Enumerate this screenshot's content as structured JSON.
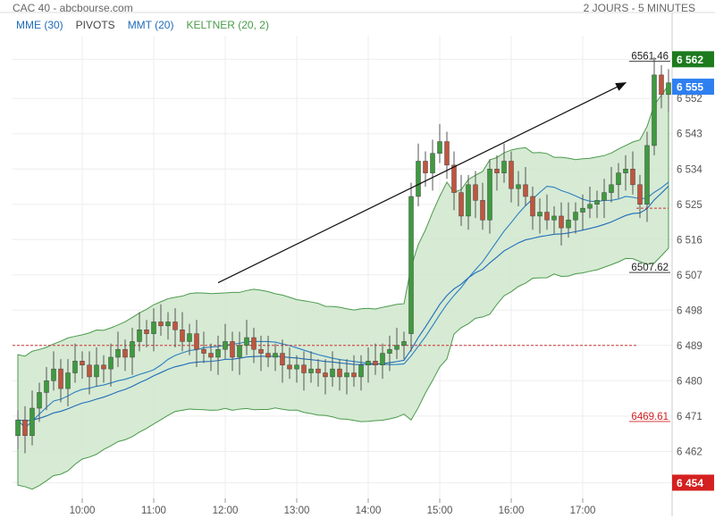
{
  "header": {
    "title": "CAC 40 - abcbourse.com",
    "period": "2 JOURS - 5 MINUTES"
  },
  "legend": [
    {
      "label": "MME (30)",
      "color": "#1f6bb8"
    },
    {
      "label": "PIVOTS",
      "color": "#444444"
    },
    {
      "label": "MMT (20)",
      "color": "#1f6bb8"
    },
    {
      "label": "KELTNER (20, 2)",
      "color": "#4a9a4a"
    }
  ],
  "colors": {
    "up": "#3f9a3f",
    "down": "#c0553e",
    "keltner_fill": "#cfe6cc",
    "keltner_line": "#4a9a4a",
    "mme": "#1f6bb8",
    "mmt": "#2a7fc0",
    "pivot": "#cc3333",
    "grid": "#eeeeee",
    "badge_green": "#1d7a1d",
    "badge_blue": "#2e7ff0",
    "badge_red": "#d42020"
  },
  "chart_data": {
    "type": "candlestick",
    "x_ticks": [
      "10:00",
      "11:00",
      "12:00",
      "13:00",
      "14:00",
      "15:00",
      "16:00",
      "17:00"
    ],
    "y_ticks": [
      6454,
      6462,
      6471,
      6480,
      6489,
      6498,
      6507,
      6516,
      6525,
      6534,
      6543,
      6552,
      6562
    ],
    "y_tick_labels": [
      "6 454",
      "6 462",
      "6 471",
      "6 480",
      "6 489",
      "6 498",
      "6 507",
      "6 516",
      "6 525",
      "6 534",
      "6 543",
      "6 552",
      "6 562"
    ],
    "ylim": [
      6450,
      6568
    ],
    "x_index_ticks": [
      9,
      19,
      29,
      39,
      49,
      59,
      69,
      79
    ],
    "n": 92,
    "pivots": [
      6489,
      6524
    ],
    "annotations": [
      {
        "value": 6561.46,
        "label": "6561.46",
        "color": "#222222"
      },
      {
        "value": 6507.62,
        "label": "6507.62",
        "color": "#222222"
      },
      {
        "value": 6469.61,
        "label": "6469.61",
        "color": "#d42020"
      }
    ],
    "badges": [
      {
        "value": 6562,
        "label": "6 562",
        "color": "#1d7a1d"
      },
      {
        "value": 6555,
        "label": "6 555",
        "color": "#2e7ff0"
      },
      {
        "value": 6454,
        "label": "6 454",
        "color": "#d42020"
      }
    ],
    "trendline": [
      [
        28,
        6505
      ],
      [
        85,
        6556
      ]
    ],
    "closes": [
      6470,
      6466,
      6473,
      6477,
      6480,
      6483,
      6478,
      6482,
      6485,
      6484,
      6481,
      6484,
      6483,
      6486,
      6488,
      6486,
      6490,
      6493,
      6492,
      6495,
      6494,
      6495,
      6493,
      6490,
      6492,
      6488,
      6487,
      6486,
      6488,
      6490,
      6486,
      6489,
      6491,
      6488,
      6487,
      6486,
      6487,
      6484,
      6483,
      6484,
      6482,
      6483,
      6482,
      6481,
      6483,
      6481,
      6482,
      6481,
      6484,
      6485,
      6484,
      6487,
      6488,
      6489,
      6490,
      6527,
      6536,
      6533,
      6538,
      6541,
      6535,
      6528,
      6522,
      6530,
      6526,
      6521,
      6534,
      6533,
      6536,
      6529,
      6530,
      6527,
      6522,
      6523,
      6521,
      6522,
      6519,
      6521,
      6523,
      6524,
      6525,
      6526,
      6528,
      6530,
      6533,
      6534,
      6530,
      6525,
      6540,
      6558,
      6553,
      6556
    ],
    "opens": [
      6466,
      6470,
      6466,
      6473,
      6477,
      6480,
      6483,
      6478,
      6482,
      6485,
      6484,
      6481,
      6484,
      6483,
      6486,
      6488,
      6486,
      6490,
      6493,
      6492,
      6495,
      6494,
      6495,
      6493,
      6490,
      6492,
      6488,
      6487,
      6486,
      6488,
      6490,
      6486,
      6489,
      6491,
      6488,
      6487,
      6486,
      6487,
      6484,
      6483,
      6484,
      6482,
      6483,
      6482,
      6481,
      6483,
      6481,
      6482,
      6481,
      6484,
      6485,
      6484,
      6487,
      6488,
      6489,
      6492,
      6527,
      6536,
      6533,
      6538,
      6541,
      6535,
      6528,
      6522,
      6530,
      6526,
      6521,
      6534,
      6533,
      6536,
      6529,
      6530,
      6527,
      6522,
      6523,
      6521,
      6522,
      6519,
      6521,
      6523,
      6524,
      6525,
      6526,
      6528,
      6530,
      6533,
      6534,
      6530,
      6525,
      6540,
      6558,
      6553
    ]
  }
}
